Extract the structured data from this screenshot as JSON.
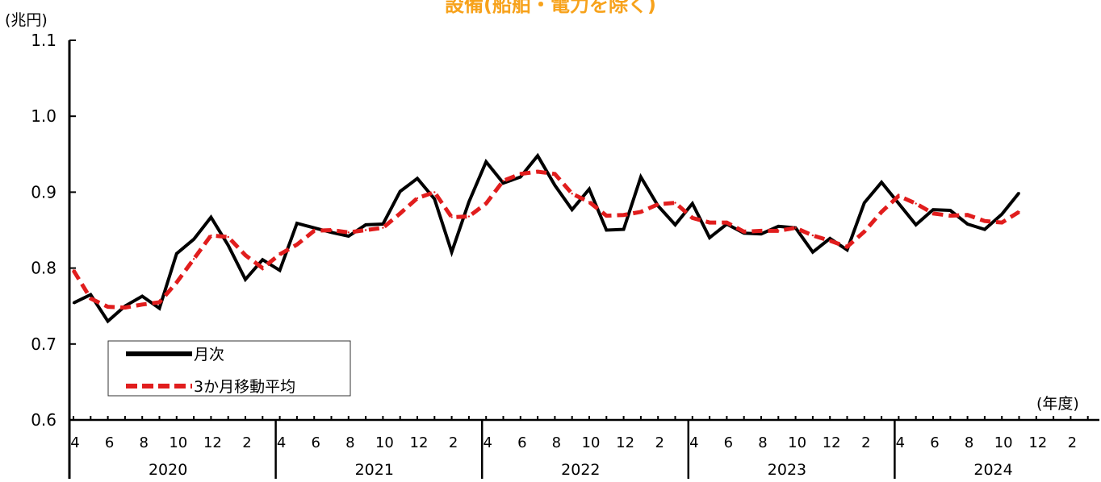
{
  "chart_data": {
    "type": "line",
    "title": "設備(船舶・電力を除く)",
    "y_unit": "(兆円)",
    "x_unit": "(年度)",
    "ylim": [
      0.6,
      1.1
    ],
    "y_ticks": [
      {
        "value": 1.1,
        "label": "1.1"
      },
      {
        "value": 1.0,
        "label": "1.0"
      },
      {
        "value": 0.9,
        "label": "0.9"
      },
      {
        "value": 0.8,
        "label": "0.8"
      },
      {
        "value": 0.7,
        "label": "0.7"
      },
      {
        "value": 0.6,
        "label": "0.6"
      }
    ],
    "month_tick_labels": [
      "4",
      "6",
      "8",
      "10",
      "12",
      "2"
    ],
    "fiscal_years": [
      "2020",
      "2021",
      "2022",
      "2023",
      "2024"
    ],
    "legend_position": "lower-left",
    "grid": false,
    "series": [
      {
        "name": "月次",
        "color": "#000000",
        "style": "solid",
        "values": [
          0.754,
          0.765,
          0.73,
          0.75,
          0.763,
          0.747,
          0.819,
          0.838,
          0.867,
          0.83,
          0.785,
          0.811,
          0.797,
          0.859,
          0.853,
          0.847,
          0.842,
          0.857,
          0.858,
          0.901,
          0.918,
          0.891,
          0.821,
          0.887,
          0.94,
          0.912,
          0.92,
          0.948,
          0.909,
          0.877,
          0.904,
          0.85,
          0.851,
          0.92,
          0.882,
          0.857,
          0.885,
          0.84,
          0.858,
          0.846,
          0.845,
          0.855,
          0.853,
          0.821,
          0.839,
          0.824,
          0.886,
          0.913,
          0.885,
          0.857,
          0.877,
          0.876,
          0.858,
          0.851,
          0.871,
          0.899
        ]
      },
      {
        "name": "3か月移動平均",
        "color": "#e11d1d",
        "style": "dashed",
        "values": [
          0.797,
          0.76,
          0.749,
          0.748,
          0.752,
          0.755,
          0.781,
          0.812,
          0.843,
          0.841,
          0.817,
          0.8,
          0.818,
          0.831,
          0.849,
          0.85,
          0.847,
          0.85,
          0.853,
          0.872,
          0.892,
          0.9,
          0.867,
          0.868,
          0.885,
          0.915,
          0.924,
          0.927,
          0.924,
          0.898,
          0.887,
          0.869,
          0.87,
          0.874,
          0.884,
          0.886,
          0.866,
          0.86,
          0.86,
          0.848,
          0.849,
          0.849,
          0.853,
          0.843,
          0.836,
          0.828,
          0.848,
          0.874,
          0.895,
          0.885,
          0.872,
          0.869,
          0.87,
          0.862,
          0.86,
          0.874
        ]
      }
    ]
  }
}
